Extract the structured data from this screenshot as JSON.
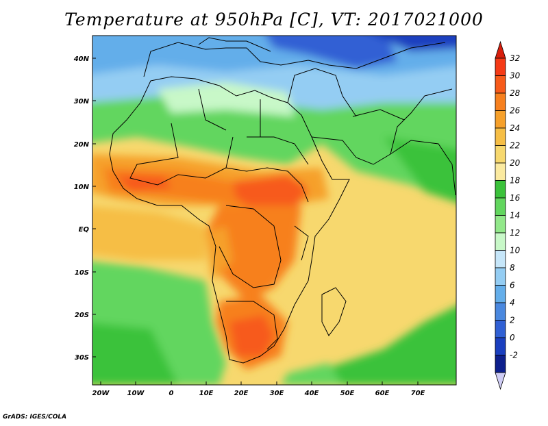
{
  "title": "Temperature at 950hPa [C], VT: 2017021000",
  "credit": "GrADS: IGES/COLA",
  "map": {
    "lon_labels": [
      "20W",
      "10W",
      "0",
      "10E",
      "20E",
      "30E",
      "40E",
      "50E",
      "60E",
      "70E"
    ],
    "lat_labels": [
      "40N",
      "30N",
      "20N",
      "10N",
      "EQ",
      "10S",
      "20S",
      "30S"
    ]
  },
  "colorbar": {
    "labels": [
      "32",
      "30",
      "28",
      "26",
      "24",
      "22",
      "20",
      "18",
      "16",
      "14",
      "12",
      "10",
      "8",
      "6",
      "4",
      "2",
      "0",
      "-2"
    ],
    "colors": [
      "#f53a16",
      "#f75a1a",
      "#f7801e",
      "#f6a02a",
      "#f6be45",
      "#f7d86e",
      "#fbeaa0",
      "#3bc23b",
      "#62d65e",
      "#92e88a",
      "#c8f8c8",
      "#c6e6f9",
      "#94cdf3",
      "#64aeea",
      "#4a88df",
      "#3060d4",
      "#1a3fbf",
      "#0d1f8c"
    ],
    "top_color": "#d81e0c",
    "bottom_color": "#cfcdf5"
  }
}
